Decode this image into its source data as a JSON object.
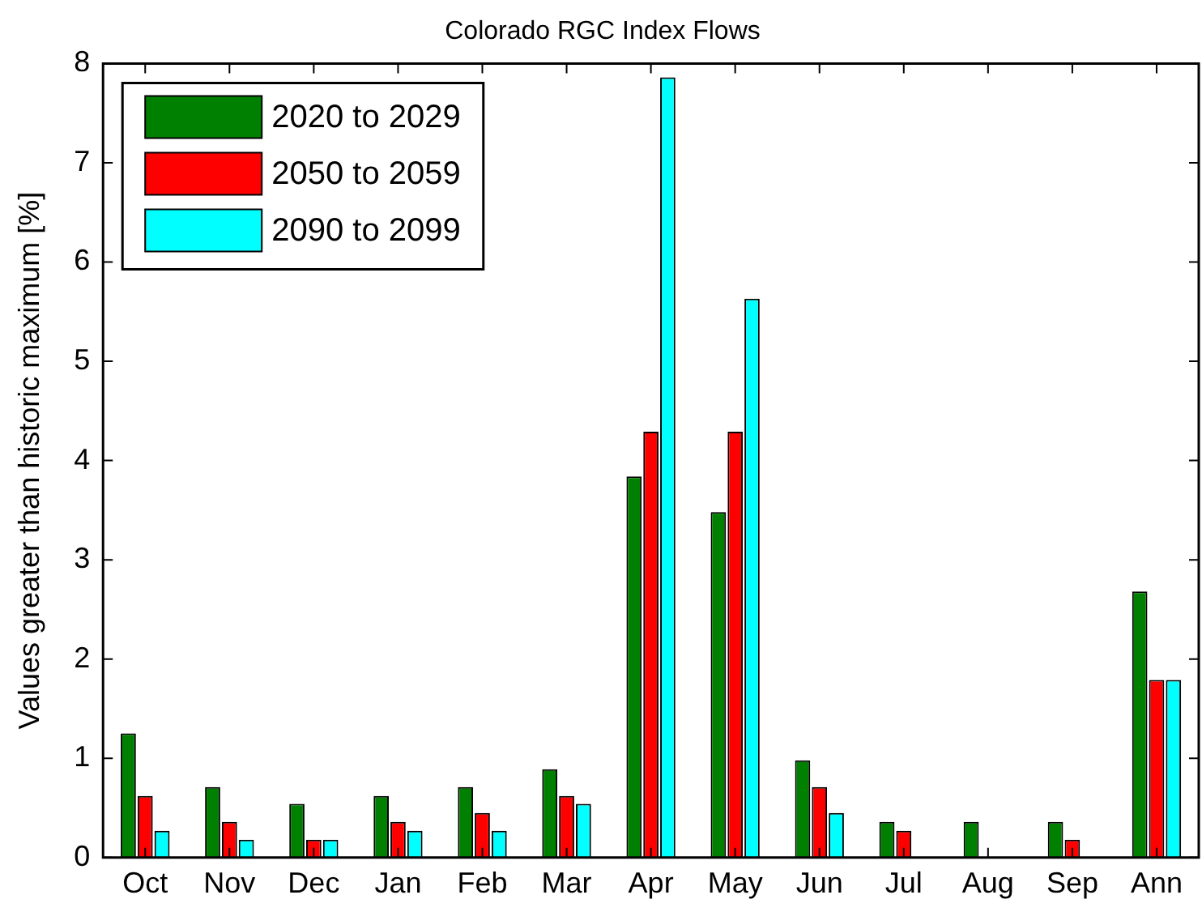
{
  "chart_data": {
    "type": "bar",
    "title": "Colorado RGC Index Flows",
    "ylabel": "Values greater than historic maximum [%]",
    "categories": [
      "Oct",
      "Nov",
      "Dec",
      "Jan",
      "Feb",
      "Mar",
      "Apr",
      "May",
      "Jun",
      "Jul",
      "Aug",
      "Sep",
      "Ann"
    ],
    "series": [
      {
        "name": "2020 to 2029",
        "color": "#008000",
        "values": [
          1.25,
          0.71,
          0.54,
          0.62,
          0.71,
          0.89,
          3.84,
          3.48,
          0.98,
          0.36,
          0.36,
          0.36,
          2.68
        ]
      },
      {
        "name": "2050 to 2059",
        "color": "#ff0000",
        "values": [
          0.62,
          0.36,
          0.18,
          0.36,
          0.45,
          0.62,
          4.29,
          4.29,
          0.71,
          0.27,
          0,
          0.18,
          1.79
        ]
      },
      {
        "name": "2090 to 2099",
        "color": "#00ffff",
        "values": [
          0.27,
          0.18,
          0.18,
          0.27,
          0.27,
          0.54,
          7.86,
          5.63,
          0.45,
          0,
          0,
          0,
          1.79
        ]
      }
    ],
    "ylim": [
      0,
      8
    ],
    "yticks": [
      0,
      1,
      2,
      3,
      4,
      5,
      6,
      7,
      8
    ],
    "grid": false,
    "legend": "top left"
  }
}
